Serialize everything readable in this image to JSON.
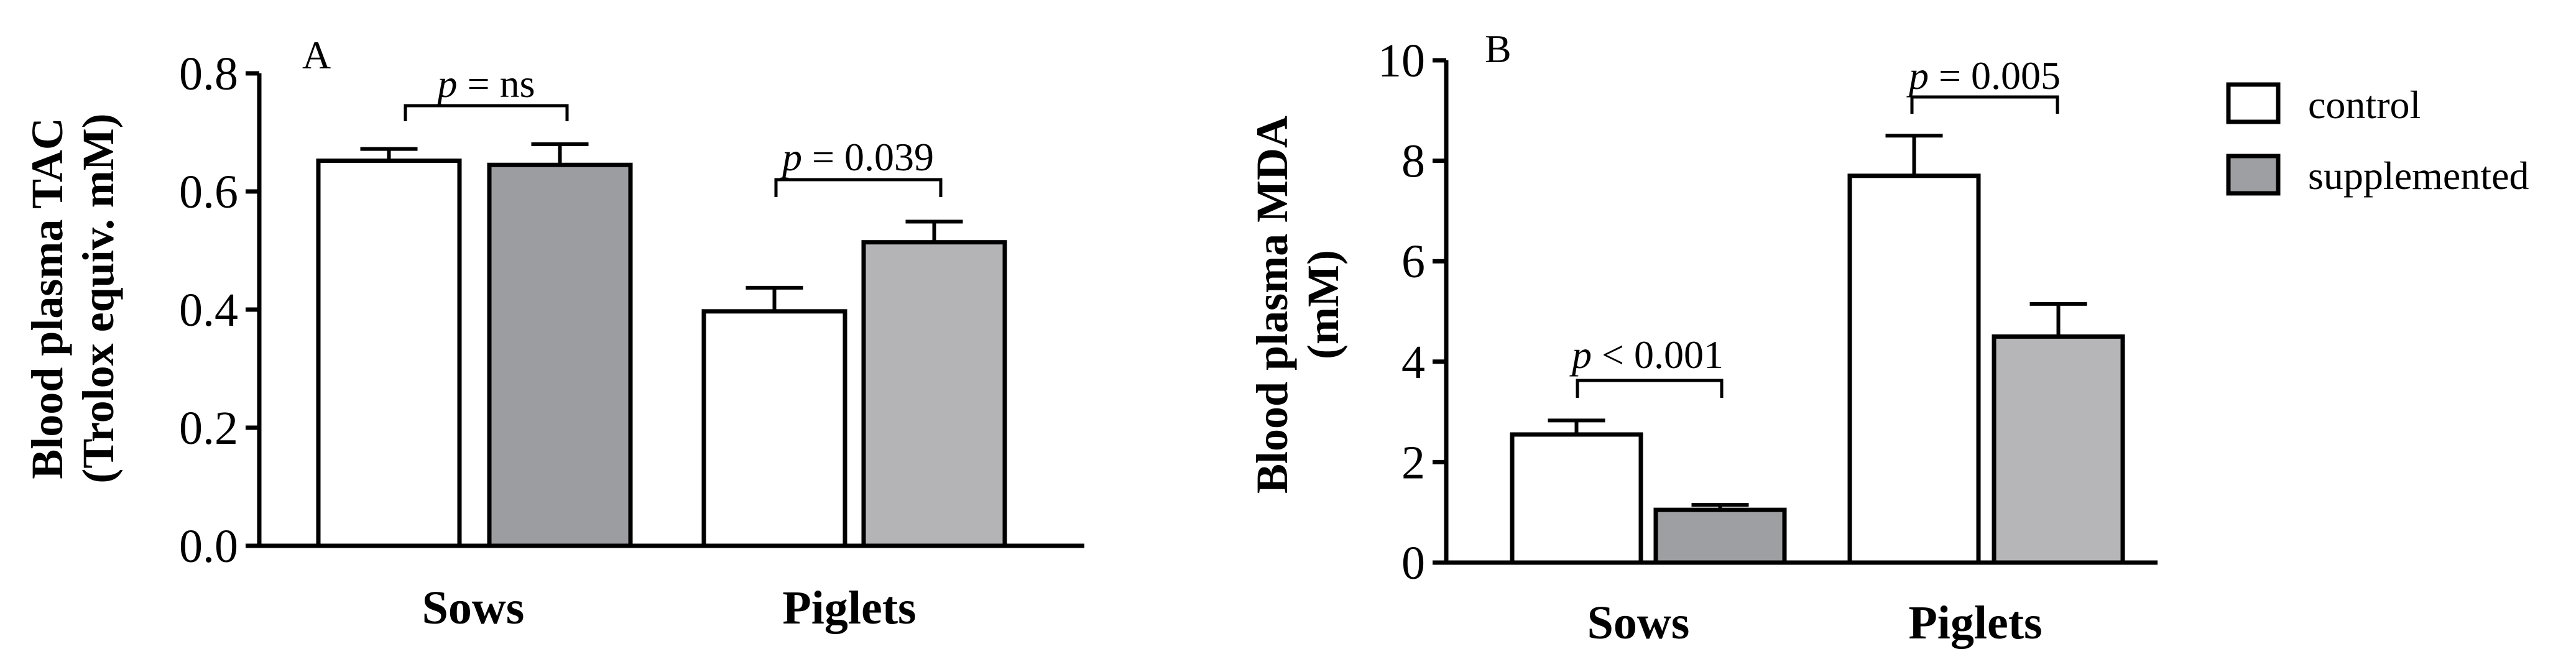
{
  "chart_data": [
    {
      "panel": "A",
      "type": "bar",
      "ylabel": [
        "Blood plasma TAC",
        "(Trolox equiv. mM)"
      ],
      "ylim": [
        0,
        0.8
      ],
      "yticks": [
        "0.0",
        "0.2",
        "0.4",
        "0.6",
        "0.8"
      ],
      "yticks_values": [
        0,
        0.2,
        0.4,
        0.6,
        0.8
      ],
      "categories": [
        "Sows",
        "Piglets"
      ],
      "series": [
        {
          "name": "control",
          "values": [
            0.652,
            0.397
          ],
          "errors": [
            0.02,
            0.04
          ]
        },
        {
          "name": "supplemented",
          "values": [
            0.645,
            0.514
          ],
          "errors": [
            0.035,
            0.035
          ]
        }
      ],
      "annotations": [
        {
          "italic": "p",
          "text": " = ns"
        },
        {
          "italic": "p",
          "text": " = 0.039"
        }
      ]
    },
    {
      "panel": "B",
      "type": "bar",
      "ylabel": [
        "Blood plasma MDA",
        "(mM)"
      ],
      "ylim": [
        0,
        10
      ],
      "yticks": [
        "0",
        "2",
        "4",
        "6",
        "8",
        "10"
      ],
      "yticks_values": [
        0,
        2,
        4,
        6,
        8,
        10
      ],
      "categories": [
        "Sows",
        "Piglets"
      ],
      "series": [
        {
          "name": "control",
          "values": [
            2.55,
            7.7
          ],
          "errors": [
            0.28,
            0.8
          ]
        },
        {
          "name": "supplemented",
          "values": [
            1.05,
            4.5
          ],
          "errors": [
            0.1,
            0.65
          ]
        }
      ],
      "annotations": [
        {
          "italic": "p",
          "text": " < 0.001"
        },
        {
          "italic": "p",
          "text": " = 0.005"
        }
      ]
    }
  ],
  "legend": [
    {
      "label": "control",
      "color": "#ffffff"
    },
    {
      "label": "supplemented",
      "color": "#9e9fa2"
    }
  ],
  "colors": {
    "A": [
      "#ffffff",
      "#9c9da0"
    ],
    "A_piglets_supp": "#b4b4b6",
    "B": [
      "#ffffff",
      "#9e9fa2"
    ],
    "B_piglets_supp": "#b6b6b8"
  }
}
